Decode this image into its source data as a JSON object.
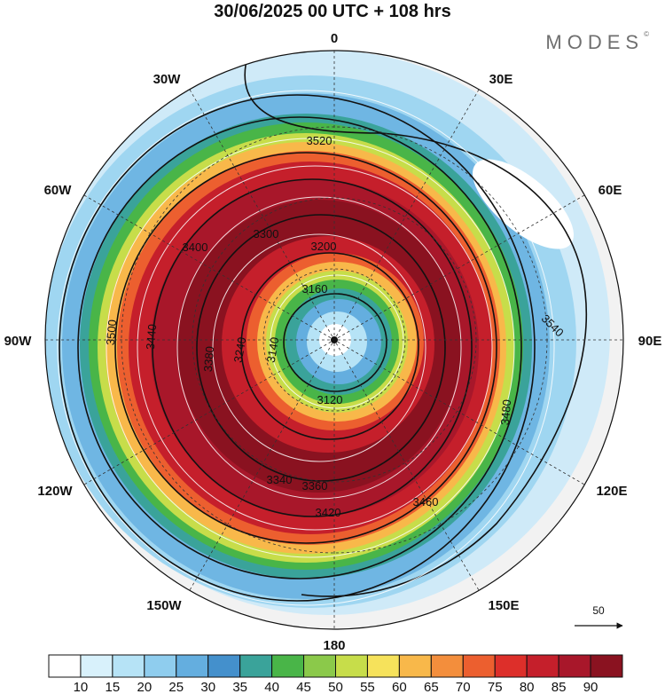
{
  "header": {
    "title": "30/06/2025  00 UTC  + 108 hrs",
    "brand": "MODES",
    "brand_mark": "©"
  },
  "map": {
    "projection": "polar-stereographic (south pole)",
    "longitude_labels": [
      {
        "id": "lon-0",
        "text": "0"
      },
      {
        "id": "lon-30e",
        "text": "30E"
      },
      {
        "id": "lon-60e",
        "text": "60E"
      },
      {
        "id": "lon-90e",
        "text": "90E"
      },
      {
        "id": "lon-120e",
        "text": "120E"
      },
      {
        "id": "lon-150e",
        "text": "150E"
      },
      {
        "id": "lon-180",
        "text": "180"
      },
      {
        "id": "lon-150w",
        "text": "150W"
      },
      {
        "id": "lon-120w",
        "text": "120W"
      },
      {
        "id": "lon-90w",
        "text": "90W"
      },
      {
        "id": "lon-60w",
        "text": "60W"
      },
      {
        "id": "lon-30w",
        "text": "30W"
      }
    ],
    "contour_labels": [
      "3120",
      "3140",
      "3160",
      "3200",
      "3240",
      "3300",
      "3340",
      "3360",
      "3380",
      "3400",
      "3420",
      "3440",
      "3460",
      "3480",
      "3500",
      "3520",
      "3540"
    ],
    "reference_vector": {
      "label": "50"
    }
  },
  "colorbar": {
    "ticks": [
      "10",
      "15",
      "20",
      "25",
      "30",
      "35",
      "40",
      "45",
      "50",
      "55",
      "60",
      "65",
      "70",
      "75",
      "80",
      "85",
      "90"
    ],
    "colors": [
      "#ffffff",
      "#d8f1fb",
      "#b6e3f6",
      "#8fcdee",
      "#64aedf",
      "#4490cc",
      "#3aa39a",
      "#49b548",
      "#8bc94a",
      "#c7dd4a",
      "#f6e25b",
      "#f8b84a",
      "#f38e3c",
      "#ec5f2f",
      "#dd2f2a",
      "#c51f2b",
      "#a8172a",
      "#8a1220"
    ]
  }
}
